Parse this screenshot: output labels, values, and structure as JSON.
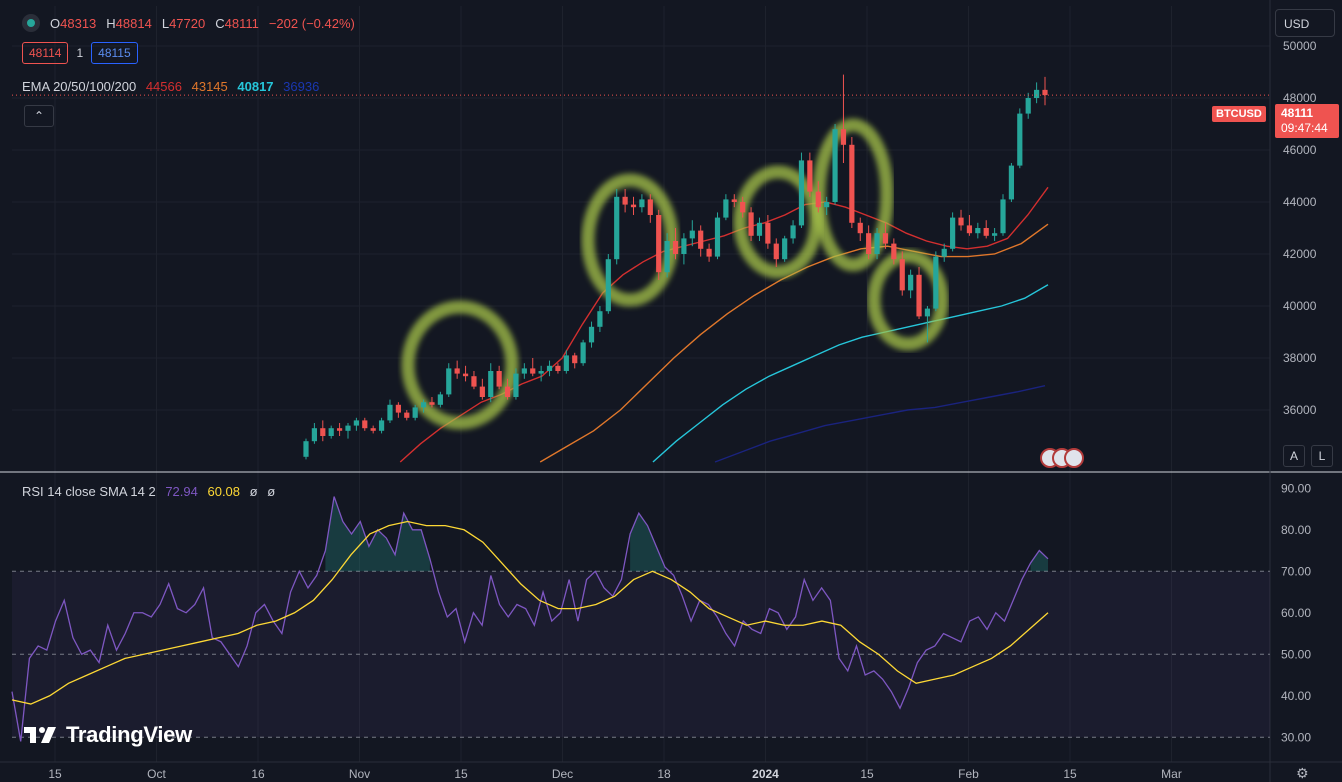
{
  "header": {
    "ohlc": {
      "o_label": "O",
      "o": "48313",
      "h_label": "H",
      "h": "48814",
      "l_label": "L",
      "l": "47720",
      "c_label": "C",
      "c": "48111",
      "change": "−202 (−0.42%)"
    },
    "bid": "48114",
    "spread": "1",
    "ask": "48115",
    "ema": {
      "label": "EMA 20/50/100/200",
      "v20": "44566",
      "v50": "43145",
      "v100": "40817",
      "v200": "36936"
    },
    "collapse_icon": "chevron-up-icon"
  },
  "rsi_legend": {
    "label": "RSI 14 close SMA 14 2",
    "rsi": "72.94",
    "sma": "60.08",
    "a": "ø",
    "b": "ø"
  },
  "right": {
    "currency": "USD",
    "symbol": "BTCUSD",
    "last_price": "48111",
    "countdown": "09:47:44",
    "auto_btn": "A",
    "log_btn": "L"
  },
  "branding": {
    "name": "TradingView"
  },
  "colors": {
    "up": "#26a69a",
    "down": "#ef5350",
    "ema20": "#d32f2f",
    "ema50": "#e0772b",
    "ema100": "#26c6da",
    "ema200": "#1a237e",
    "rsi": "#7e57c2",
    "rsi_sma": "#fdd835",
    "highlight": "#a6c34a"
  },
  "chart_data": [
    {
      "type": "candlestick",
      "title": "BTCUSD",
      "price_axis": {
        "ticks": [
          "50000",
          "48000",
          "46000",
          "44000",
          "42000",
          "40000",
          "38000",
          "36000"
        ],
        "ylim": [
          34000,
          50000
        ]
      },
      "time_axis": {
        "ticks": [
          "15",
          "Oct",
          "16",
          "Nov",
          "15",
          "Dec",
          "18",
          "2024",
          "15",
          "Feb",
          "15",
          "Mar"
        ]
      },
      "candles": [
        [
          34200,
          34900,
          34100,
          34800
        ],
        [
          34800,
          35500,
          34700,
          35300
        ],
        [
          35300,
          35600,
          34800,
          35000
        ],
        [
          35000,
          35400,
          34900,
          35300
        ],
        [
          35300,
          35500,
          35000,
          35200
        ],
        [
          35200,
          35500,
          34900,
          35400
        ],
        [
          35400,
          35700,
          35200,
          35600
        ],
        [
          35600,
          35700,
          35200,
          35300
        ],
        [
          35300,
          35400,
          35100,
          35200
        ],
        [
          35200,
          35700,
          35100,
          35600
        ],
        [
          35600,
          36400,
          35500,
          36200
        ],
        [
          36200,
          36300,
          35700,
          35900
        ],
        [
          35900,
          36000,
          35600,
          35700
        ],
        [
          35700,
          36200,
          35600,
          36100
        ],
        [
          36100,
          36400,
          35900,
          36300
        ],
        [
          36300,
          36500,
          36100,
          36200
        ],
        [
          36200,
          36700,
          36100,
          36600
        ],
        [
          36600,
          37800,
          36500,
          37600
        ],
        [
          37600,
          37900,
          37200,
          37400
        ],
        [
          37400,
          37700,
          37100,
          37300
        ],
        [
          37300,
          37500,
          36800,
          36900
        ],
        [
          36900,
          37200,
          36400,
          36500
        ],
        [
          36500,
          37800,
          36300,
          37500
        ],
        [
          37500,
          37700,
          36800,
          36900
        ],
        [
          36900,
          37200,
          36400,
          36500
        ],
        [
          36500,
          37600,
          36400,
          37400
        ],
        [
          37400,
          37800,
          37200,
          37600
        ],
        [
          37600,
          38000,
          37300,
          37400
        ],
        [
          37400,
          37700,
          37100,
          37500
        ],
        [
          37500,
          37900,
          37300,
          37700
        ],
        [
          37700,
          37800,
          37400,
          37500
        ],
        [
          37500,
          38300,
          37400,
          38100
        ],
        [
          38100,
          38200,
          37600,
          37800
        ],
        [
          37800,
          38700,
          37700,
          38600
        ],
        [
          38600,
          39400,
          38400,
          39200
        ],
        [
          39200,
          40000,
          39000,
          39800
        ],
        [
          39800,
          42000,
          39700,
          41800
        ],
        [
          41800,
          44500,
          41600,
          44200
        ],
        [
          44200,
          44500,
          43600,
          43900
        ],
        [
          43900,
          44200,
          43500,
          43800
        ],
        [
          43800,
          44300,
          43600,
          44100
        ],
        [
          44100,
          44300,
          43200,
          43500
        ],
        [
          43500,
          43700,
          41000,
          41300
        ],
        [
          41300,
          42800,
          41100,
          42500
        ],
        [
          42500,
          43000,
          41800,
          42000
        ],
        [
          42000,
          42800,
          41600,
          42600
        ],
        [
          42600,
          43300,
          42300,
          42900
        ],
        [
          42900,
          43100,
          41900,
          42200
        ],
        [
          42200,
          42400,
          41700,
          41900
        ],
        [
          41900,
          43600,
          41800,
          43400
        ],
        [
          43400,
          44300,
          43300,
          44100
        ],
        [
          44100,
          44300,
          43800,
          44000
        ],
        [
          44000,
          44200,
          43400,
          43600
        ],
        [
          43600,
          43800,
          42500,
          42700
        ],
        [
          42700,
          43400,
          42500,
          43200
        ],
        [
          43200,
          43500,
          42200,
          42400
        ],
        [
          42400,
          42600,
          41500,
          41800
        ],
        [
          41800,
          42700,
          41700,
          42600
        ],
        [
          42600,
          43300,
          42400,
          43100
        ],
        [
          43100,
          45900,
          43000,
          45600
        ],
        [
          45600,
          45900,
          44200,
          44400
        ],
        [
          44400,
          44800,
          43600,
          43800
        ],
        [
          43800,
          44200,
          43500,
          44000
        ],
        [
          44000,
          47000,
          43900,
          46800
        ],
        [
          46800,
          48900,
          45500,
          46200
        ],
        [
          46200,
          46500,
          43000,
          43200
        ],
        [
          43200,
          43400,
          42500,
          42800
        ],
        [
          42800,
          43100,
          41800,
          42000
        ],
        [
          42000,
          43000,
          41800,
          42800
        ],
        [
          42800,
          43200,
          42200,
          42400
        ],
        [
          42400,
          42600,
          41600,
          41800
        ],
        [
          41800,
          42100,
          40400,
          40600
        ],
        [
          40600,
          41400,
          40300,
          41200
        ],
        [
          41200,
          41500,
          39500,
          39600
        ],
        [
          39600,
          40000,
          38600,
          39900
        ],
        [
          39900,
          42100,
          39800,
          41900
        ],
        [
          41900,
          42400,
          41700,
          42200
        ],
        [
          42200,
          43600,
          42100,
          43400
        ],
        [
          43400,
          43700,
          42900,
          43100
        ],
        [
          43100,
          43500,
          42700,
          42800
        ],
        [
          42800,
          43200,
          42600,
          43000
        ],
        [
          43000,
          43300,
          42600,
          42700
        ],
        [
          42700,
          43000,
          42500,
          42800
        ],
        [
          42800,
          44300,
          42700,
          44100
        ],
        [
          44100,
          45500,
          44000,
          45400
        ],
        [
          45400,
          47600,
          45300,
          47400
        ],
        [
          47400,
          48200,
          47200,
          48000
        ],
        [
          48000,
          48600,
          47800,
          48313
        ],
        [
          48313,
          48814,
          47720,
          48111
        ]
      ],
      "ema20": [
        33200,
        34000,
        34700,
        35300,
        35800,
        36300,
        36600,
        37000,
        37300,
        38000,
        39300,
        40500,
        41200,
        41700,
        42100,
        42300,
        42500,
        42700,
        43000,
        43200,
        43500,
        43900,
        44000,
        43800,
        43500,
        43200,
        42800,
        42500,
        42300,
        42200,
        42300,
        42600,
        43500,
        44566
      ],
      "ema50": [
        31500,
        32500,
        33300,
        34000,
        34600,
        35200,
        36000,
        37000,
        38000,
        38900,
        39700,
        40400,
        41000,
        41500,
        41900,
        42200,
        42300,
        42100,
        41900,
        41900,
        42000,
        42400,
        43145
      ],
      "ema100": [
        30500,
        31500,
        32400,
        33200,
        34000,
        34800,
        35500,
        36200,
        36800,
        37300,
        37700,
        38100,
        38500,
        38800,
        39000,
        39200,
        39400,
        39600,
        39800,
        40000,
        40300,
        40817
      ],
      "ema200": [
        34000,
        34400,
        34800,
        35100,
        35400,
        35600,
        35800,
        36000,
        36100,
        36300,
        36500,
        36700,
        36936
      ],
      "highlighted_zones": 5
    },
    {
      "type": "line",
      "title": "RSI 14 close SMA 14 2",
      "ylim": [
        25,
        92
      ],
      "y_ticks": [
        "90.00",
        "80.00",
        "70.00",
        "60.00",
        "50.00",
        "40.00",
        "30.00"
      ],
      "bands": [
        70,
        50,
        30
      ],
      "series": [
        {
          "name": "RSI",
          "values": [
            41,
            29,
            49,
            52,
            51,
            58,
            63,
            54,
            50,
            51,
            48,
            57,
            51,
            55,
            60,
            60,
            59,
            62,
            67,
            61,
            60,
            62,
            66,
            54,
            53,
            50,
            47,
            52,
            60,
            62,
            58,
            55,
            65,
            70,
            66,
            69,
            75,
            88,
            82,
            79,
            82,
            76,
            80,
            78,
            74,
            84,
            80,
            80,
            73,
            65,
            59,
            61,
            53,
            60,
            57,
            69,
            62,
            59,
            62,
            61,
            57,
            65,
            58,
            60,
            68,
            58,
            68,
            70,
            66,
            64,
            68,
            79,
            84,
            81,
            76,
            71,
            69,
            64,
            58,
            63,
            62,
            59,
            55,
            52,
            58,
            56,
            55,
            61,
            60,
            56,
            59,
            68,
            63,
            66,
            63,
            49,
            46,
            52,
            45,
            46,
            44,
            41,
            37,
            42,
            48,
            51,
            52,
            55,
            54,
            53,
            58,
            59,
            56,
            60,
            58,
            63,
            68,
            72,
            75,
            73
          ]
        },
        {
          "name": "SMA",
          "values": [
            39,
            38,
            40,
            43,
            45,
            47,
            49,
            50,
            51,
            52,
            53,
            54,
            55,
            57,
            58,
            60,
            63,
            68,
            74,
            79,
            81,
            82,
            81,
            81,
            80,
            77,
            72,
            67,
            63,
            61,
            61,
            62,
            64,
            68,
            70,
            68,
            65,
            61,
            59,
            57,
            58,
            57,
            57,
            58,
            57,
            53,
            50,
            46,
            43,
            44,
            45,
            47,
            49,
            52,
            56,
            60
          ]
        }
      ]
    }
  ]
}
